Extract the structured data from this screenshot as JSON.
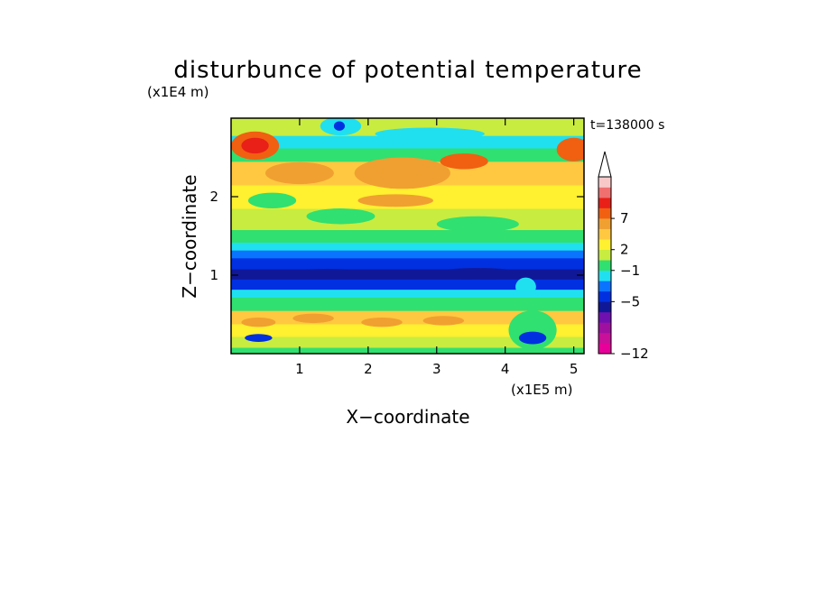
{
  "chart_data": {
    "type": "heatmap",
    "title": "disturbunce of potential temperature",
    "xlabel": "X−coordinate",
    "ylabel": "Z−coordinate",
    "x_unit": "(x1E5 m)",
    "y_unit": "(x1E4 m)",
    "time_label": "t=138000 s",
    "x_ticks": [
      "1",
      "2",
      "3",
      "4",
      "5"
    ],
    "y_ticks": [
      "1",
      "2"
    ],
    "xlim": [
      0,
      5.15
    ],
    "ylim": [
      0,
      3.0
    ],
    "colorbar": {
      "tick_labels": [
        "7",
        "2",
        "−1",
        "−5",
        "−12"
      ],
      "colors": [
        "#e8009a",
        "#c8109a",
        "#a010a0",
        "#7010b0",
        "#101898",
        "#0030e0",
        "#0a74ff",
        "#20e0f0",
        "#30e070",
        "#c8ec40",
        "#fff030",
        "#ffc840",
        "#f0a030",
        "#f06010",
        "#e82018",
        "#f07070",
        "#f8c8c8"
      ],
      "extend_top": true
    },
    "bands": [
      {
        "z_range": [
          0.0,
          0.08
        ],
        "value": 0,
        "color": "#30e070"
      },
      {
        "z_range": [
          0.08,
          0.22
        ],
        "value": 1,
        "color": "#c8ec40"
      },
      {
        "z_range": [
          0.22,
          0.38
        ],
        "value": 2,
        "color": "#fff030"
      },
      {
        "z_range": [
          0.38,
          0.55
        ],
        "value": 2,
        "color": "#ffc840"
      },
      {
        "z_range": [
          0.55,
          0.72
        ],
        "value": 0,
        "color": "#30e070"
      },
      {
        "z_range": [
          0.72,
          0.82
        ],
        "value": -1,
        "color": "#20e0f0"
      },
      {
        "z_range": [
          0.82,
          0.95
        ],
        "value": -3,
        "color": "#0030e0"
      },
      {
        "z_range": [
          0.95,
          1.08
        ],
        "value": -5,
        "color": "#101898"
      },
      {
        "z_range": [
          1.08,
          1.22
        ],
        "value": -3,
        "color": "#0030e0"
      },
      {
        "z_range": [
          1.22,
          1.32
        ],
        "value": -2,
        "color": "#0a74ff"
      },
      {
        "z_range": [
          1.32,
          1.42
        ],
        "value": -1,
        "color": "#20e0f0"
      },
      {
        "z_range": [
          1.42,
          1.58
        ],
        "value": 0,
        "color": "#30e070"
      },
      {
        "z_range": [
          1.58,
          1.85
        ],
        "value": 1,
        "color": "#c8ec40"
      },
      {
        "z_range": [
          1.85,
          2.15
        ],
        "value": 2,
        "color": "#fff030"
      },
      {
        "z_range": [
          2.15,
          2.45
        ],
        "value": 2,
        "color": "#ffc840"
      },
      {
        "z_range": [
          2.45,
          2.62
        ],
        "value": 0,
        "color": "#30e070"
      },
      {
        "z_range": [
          2.62,
          2.78
        ],
        "value": -1,
        "color": "#20e0f0"
      },
      {
        "z_range": [
          2.78,
          3.0
        ],
        "value": 1,
        "color": "#c8ec40"
      }
    ],
    "blobs": [
      {
        "cx": 0.35,
        "cz": 2.65,
        "rx": 0.35,
        "rz": 0.18,
        "value": 5,
        "color": "#f06010"
      },
      {
        "cx": 0.35,
        "cz": 2.65,
        "rx": 0.2,
        "rz": 0.1,
        "value": 7,
        "color": "#e82018"
      },
      {
        "cx": 5.0,
        "cz": 2.6,
        "rx": 0.25,
        "rz": 0.15,
        "value": 5,
        "color": "#f06010"
      },
      {
        "cx": 1.0,
        "cz": 2.3,
        "rx": 0.5,
        "rz": 0.14,
        "value": 3,
        "color": "#f0a030"
      },
      {
        "cx": 2.5,
        "cz": 2.3,
        "rx": 0.7,
        "rz": 0.2,
        "value": 3,
        "color": "#f0a030"
      },
      {
        "cx": 3.4,
        "cz": 2.45,
        "rx": 0.35,
        "rz": 0.1,
        "value": 4,
        "color": "#f06010"
      },
      {
        "cx": 1.6,
        "cz": 2.9,
        "rx": 0.3,
        "rz": 0.12,
        "value": -1,
        "color": "#20e0f0"
      },
      {
        "cx": 1.58,
        "cz": 2.9,
        "rx": 0.08,
        "rz": 0.06,
        "value": -3,
        "color": "#0030e0"
      },
      {
        "cx": 2.9,
        "cz": 2.8,
        "rx": 0.8,
        "rz": 0.08,
        "value": -1,
        "color": "#20e0f0"
      },
      {
        "cx": 0.6,
        "cz": 1.95,
        "rx": 0.35,
        "rz": 0.1,
        "value": 0,
        "color": "#30e070"
      },
      {
        "cx": 1.6,
        "cz": 1.75,
        "rx": 0.5,
        "rz": 0.1,
        "value": 0,
        "color": "#30e070"
      },
      {
        "cx": 3.6,
        "cz": 1.65,
        "rx": 0.6,
        "rz": 0.1,
        "value": 0,
        "color": "#30e070"
      },
      {
        "cx": 2.4,
        "cz": 1.95,
        "rx": 0.55,
        "rz": 0.08,
        "value": 3,
        "color": "#f0a030"
      },
      {
        "cx": 0.4,
        "cz": 0.4,
        "rx": 0.25,
        "rz": 0.06,
        "value": 3,
        "color": "#f0a030"
      },
      {
        "cx": 1.2,
        "cz": 0.45,
        "rx": 0.3,
        "rz": 0.06,
        "value": 3,
        "color": "#f0a030"
      },
      {
        "cx": 2.2,
        "cz": 0.4,
        "rx": 0.3,
        "rz": 0.06,
        "value": 3,
        "color": "#f0a030"
      },
      {
        "cx": 3.1,
        "cz": 0.42,
        "rx": 0.3,
        "rz": 0.06,
        "value": 3,
        "color": "#f0a030"
      },
      {
        "cx": 4.4,
        "cz": 0.3,
        "rx": 0.35,
        "rz": 0.25,
        "value": 0,
        "color": "#30e070"
      },
      {
        "cx": 4.4,
        "cz": 0.2,
        "rx": 0.2,
        "rz": 0.08,
        "value": -3,
        "color": "#0030e0"
      },
      {
        "cx": 0.4,
        "cz": 0.2,
        "rx": 0.2,
        "rz": 0.05,
        "value": -3,
        "color": "#0030e0"
      },
      {
        "cx": 1.4,
        "cz": 1.02,
        "rx": 0.6,
        "rz": 0.06,
        "value": -6,
        "color": "#101898"
      },
      {
        "cx": 3.6,
        "cz": 1.02,
        "rx": 0.7,
        "rz": 0.07,
        "value": -6,
        "color": "#101898"
      },
      {
        "cx": 4.3,
        "cz": 0.85,
        "rx": 0.15,
        "rz": 0.12,
        "value": -1,
        "color": "#20e0f0"
      }
    ]
  }
}
